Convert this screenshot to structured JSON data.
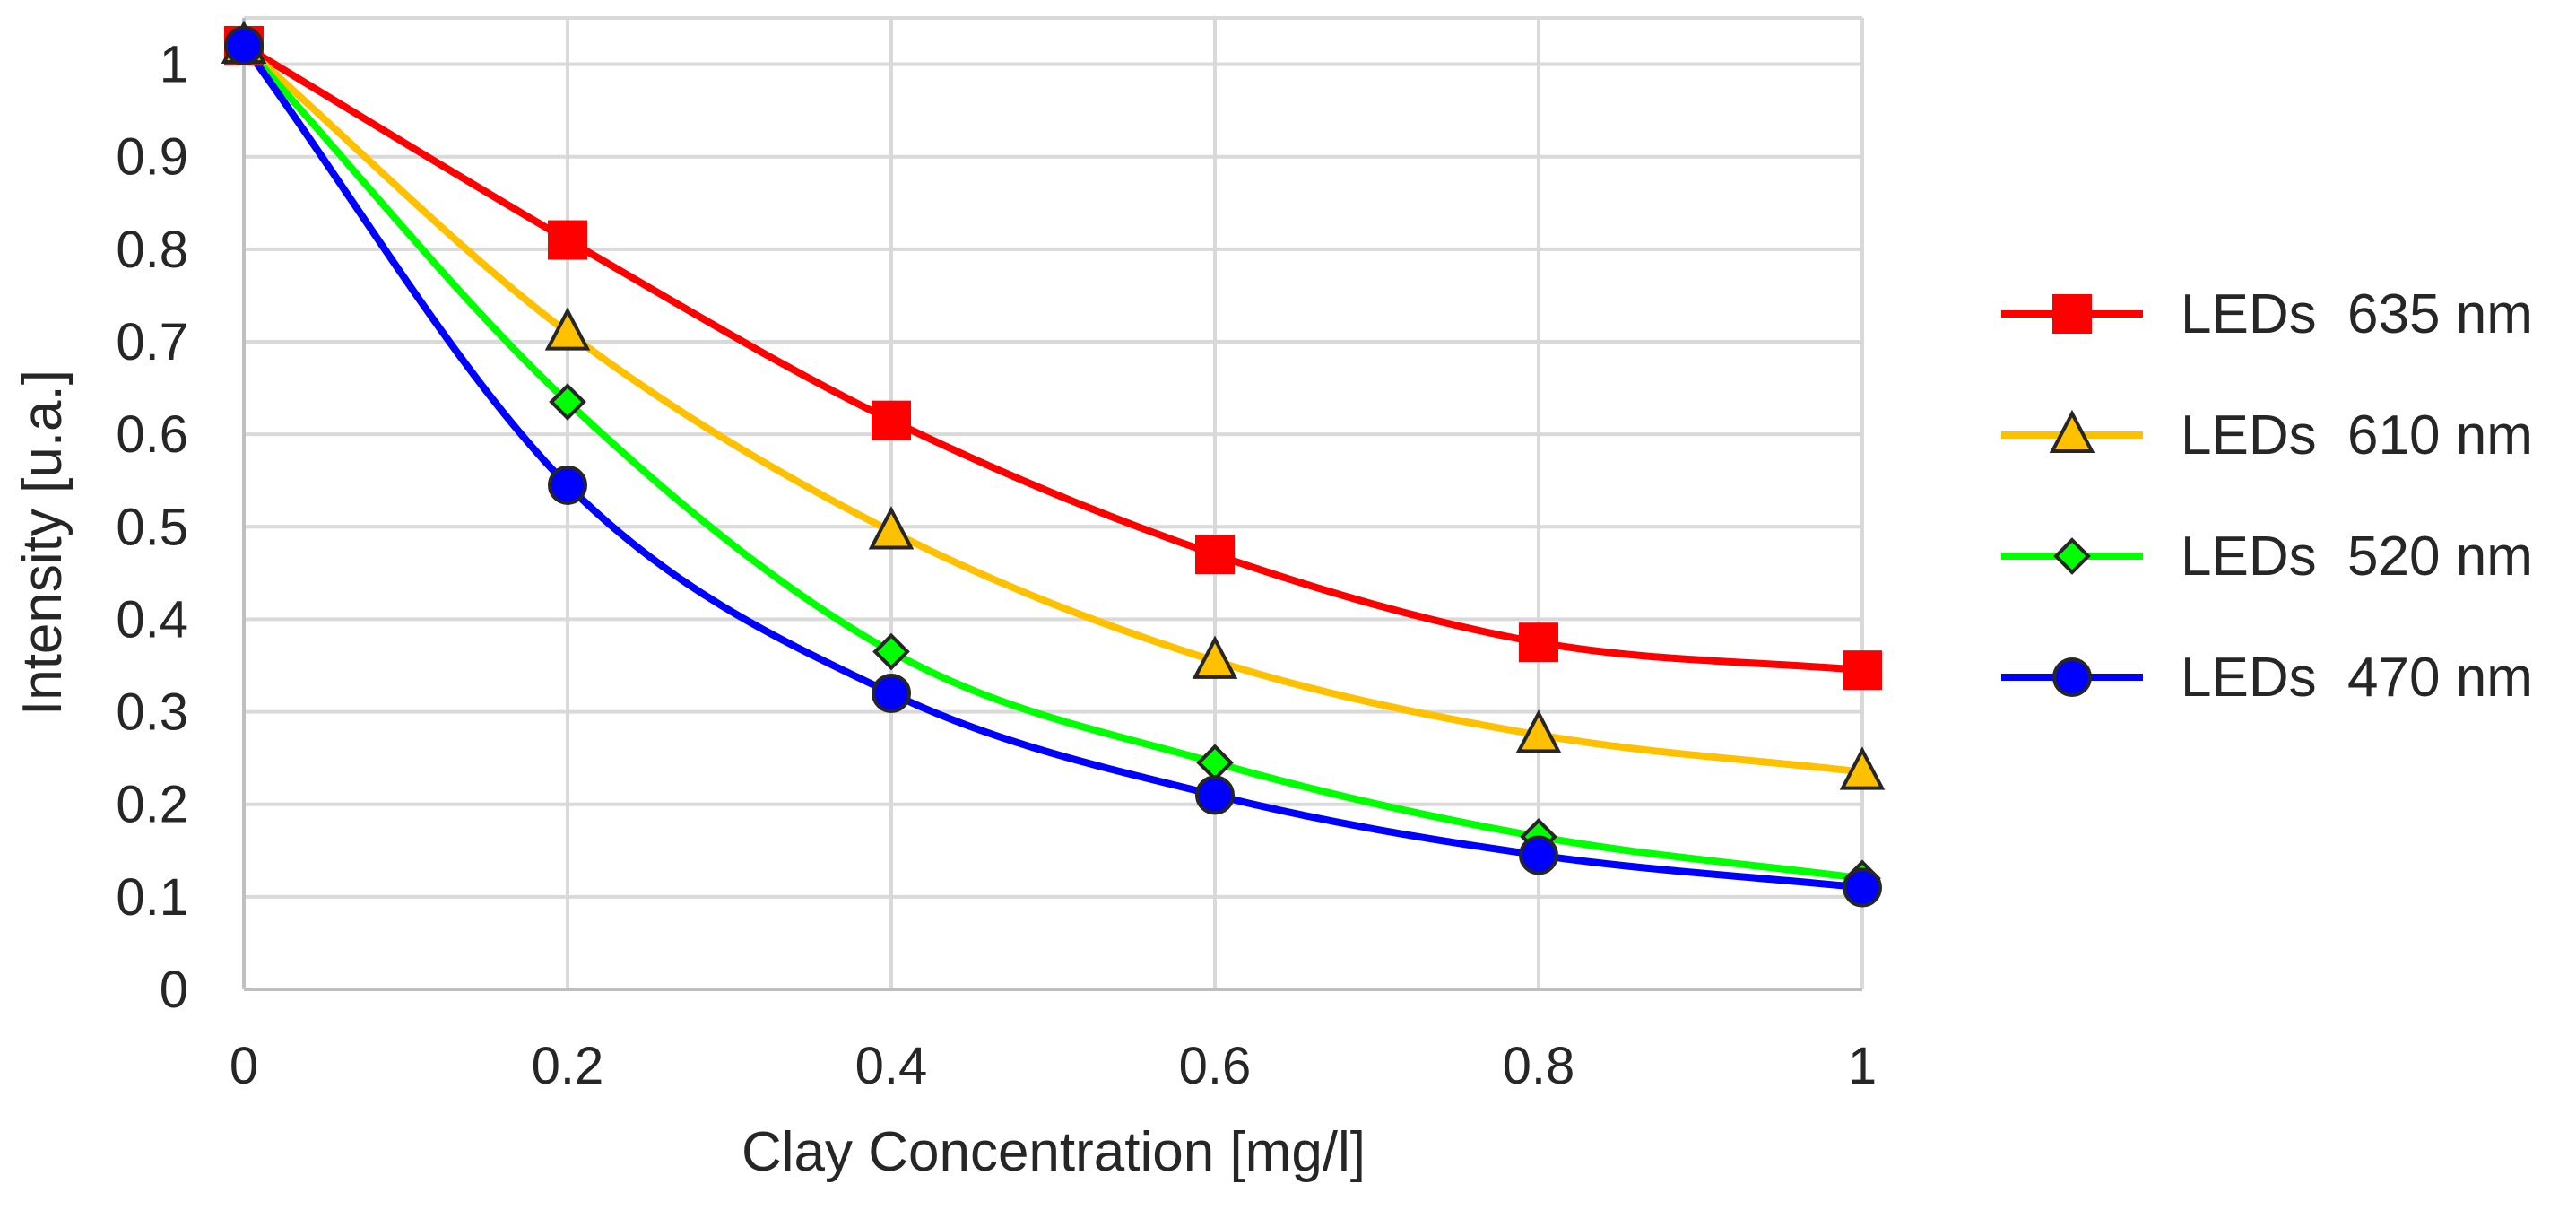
{
  "chart_data": {
    "type": "line",
    "title": "",
    "xlabel": "Clay Concentration  [mg/l]",
    "ylabel": "Intensity  [u.a.]",
    "x": [
      0,
      0.2,
      0.4,
      0.6,
      0.8,
      1
    ],
    "xlim": [
      0,
      1
    ],
    "ylim": [
      0,
      1.05
    ],
    "x_ticks": [
      0,
      0.2,
      0.4,
      0.6,
      0.8,
      1
    ],
    "x_tick_labels": [
      "0",
      "0.2",
      "0.4",
      "0.6",
      "0.8",
      "1"
    ],
    "y_ticks": [
      0,
      0.1,
      0.2,
      0.3,
      0.4,
      0.5,
      0.6,
      0.7,
      0.8,
      0.9,
      1
    ],
    "y_tick_labels": [
      "0",
      "0.1",
      "0.2",
      "0.3",
      "0.4",
      "0.5",
      "0.6",
      "0.7",
      "0.8",
      "0.9",
      "1"
    ],
    "grid": true,
    "smooth": true,
    "legend_position": "right",
    "series": [
      {
        "name": "LEDs  635 nm",
        "color": "#ff0000",
        "marker": "square",
        "values": [
          1.02,
          0.81,
          0.615,
          0.47,
          0.375,
          0.345
        ]
      },
      {
        "name": "LEDs  610 nm",
        "color": "#ffc000",
        "marker": "triangle",
        "values": [
          1.02,
          0.71,
          0.495,
          0.355,
          0.275,
          0.235
        ]
      },
      {
        "name": "LEDs  520 nm",
        "color": "#00ff00",
        "marker": "diamond",
        "values": [
          1.02,
          0.635,
          0.365,
          0.245,
          0.165,
          0.12
        ]
      },
      {
        "name": "LEDs  470 nm",
        "color": "#0000ff",
        "marker": "circle",
        "values": [
          1.02,
          0.545,
          0.32,
          0.21,
          0.145,
          0.11
        ]
      }
    ]
  }
}
